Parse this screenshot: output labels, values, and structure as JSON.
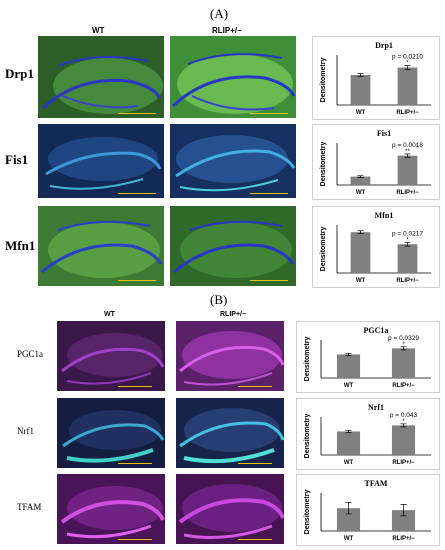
{
  "panel_a": {
    "label": "(A)",
    "col_wt": "WT",
    "col_rlip": "RLIP+/−",
    "rows": [
      "Drp1",
      "Fis1",
      "Mfn1"
    ]
  },
  "panel_b": {
    "label": "(B)",
    "col_wt": "WT",
    "col_rlip": "RLIP+/−",
    "rows": [
      "PGC1a",
      "Nrf1",
      "TFAM"
    ]
  },
  "colors": {
    "bar": "#808080",
    "green_stain": "#3fb83a",
    "nuclear_blue": "#1f3fd8",
    "cyan_stain": "#3fc8c8",
    "magenta_stain": "#b030c0",
    "scale_bar": "#e8c400"
  },
  "chart_data": [
    {
      "type": "bar",
      "title": "Drp1",
      "ylabel": "Densitometry",
      "categories": [
        "WT",
        "RLIP+/−"
      ],
      "values": [
        0.6,
        0.75
      ],
      "errors": [
        0.03,
        0.04
      ],
      "ylim": [
        0,
        1
      ],
      "annotation": "p = 0.0210",
      "star": "*"
    },
    {
      "type": "bar",
      "title": "Fis1",
      "ylabel": "Densitometry",
      "categories": [
        "WT",
        "RLIP+/−"
      ],
      "values": [
        0.2,
        0.7
      ],
      "errors": [
        0.02,
        0.04
      ],
      "ylim": [
        0,
        1
      ],
      "annotation": "p = 0.0018",
      "star": "**"
    },
    {
      "type": "bar",
      "title": "Mfn1",
      "ylabel": "Densitometry",
      "categories": [
        "WT",
        "RLIP+/−"
      ],
      "values": [
        0.85,
        0.6
      ],
      "errors": [
        0.03,
        0.04
      ],
      "ylim": [
        0,
        1
      ],
      "annotation": "p = 0.0217",
      "star": "*"
    },
    {
      "type": "bar",
      "title": "PGC1a",
      "ylabel": "Densitometry",
      "categories": [
        "WT",
        "RLIP+/−"
      ],
      "values": [
        0.62,
        0.78
      ],
      "errors": [
        0.03,
        0.04
      ],
      "ylim": [
        0,
        1
      ],
      "annotation": "p = 0.0329",
      "star": "*"
    },
    {
      "type": "bar",
      "title": "Nrf1",
      "ylabel": "Densitometry",
      "categories": [
        "WT",
        "RLIP+/−"
      ],
      "values": [
        0.62,
        0.78
      ],
      "errors": [
        0.03,
        0.04
      ],
      "ylim": [
        0,
        1
      ],
      "annotation": "p = 0.043",
      "star": "*"
    },
    {
      "type": "bar",
      "title": "TFAM",
      "ylabel": "Densitometry",
      "categories": [
        "WT",
        "RLIP+/−"
      ],
      "values": [
        0.6,
        0.55
      ],
      "errors": [
        0.15,
        0.15
      ],
      "ylim": [
        0,
        1
      ],
      "annotation": "",
      "star": ""
    }
  ]
}
